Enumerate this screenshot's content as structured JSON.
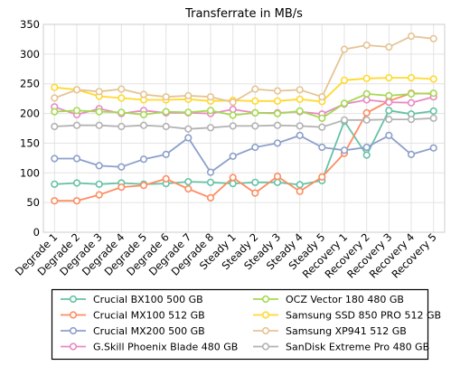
{
  "chart_data": {
    "type": "line",
    "title": "Transferrate in MB/s",
    "xlabel": "",
    "ylabel": "",
    "ylim": [
      0,
      350
    ],
    "yticks": [
      0,
      50,
      100,
      150,
      200,
      250,
      300,
      350
    ],
    "grid": true,
    "legend_position": "bottom",
    "categories": [
      "Degrade 1",
      "Degrade 2",
      "Degrade 3",
      "Degrade 4",
      "Degrade 5",
      "Degrade 6",
      "Degrade 7",
      "Degrade 8",
      "Steady 1",
      "Steady 2",
      "Steady 3",
      "Steady 4",
      "Steady 5",
      "Recovery 1",
      "Recovery 2",
      "Recovery 3",
      "Recovery 4",
      "Recovery 5"
    ],
    "series": [
      {
        "name": "Crucial BX100 500 GB",
        "color": "#66c2a5",
        "values": [
          81,
          83,
          81,
          83,
          81,
          82,
          85,
          84,
          82,
          84,
          84,
          80,
          87,
          187,
          130,
          205,
          199,
          204
        ]
      },
      {
        "name": "Crucial MX100 512 GB",
        "color": "#fc8d62",
        "values": [
          53,
          53,
          63,
          76,
          79,
          90,
          73,
          58,
          92,
          66,
          94,
          69,
          93,
          133,
          201,
          221,
          234,
          233
        ]
      },
      {
        "name": "Crucial MX200 500 GB",
        "color": "#8da0cb",
        "values": [
          124,
          124,
          112,
          110,
          123,
          131,
          159,
          101,
          128,
          143,
          150,
          163,
          143,
          138,
          143,
          163,
          131,
          142
        ]
      },
      {
        "name": "G.Skill Phoenix Blade 480 GB",
        "color": "#e78ac3",
        "values": [
          211,
          198,
          208,
          200,
          205,
          201,
          201,
          200,
          207,
          201,
          201,
          203,
          199,
          216,
          223,
          219,
          218,
          228
        ]
      },
      {
        "name": "OCZ Vector 180 480 GB",
        "color": "#a6d854",
        "values": [
          203,
          205,
          203,
          202,
          198,
          203,
          202,
          205,
          197,
          201,
          200,
          204,
          192,
          217,
          233,
          230,
          233,
          234
        ]
      },
      {
        "name": "Samsung SSD 850 PRO 512 GB",
        "color": "#ffd92f",
        "values": [
          244,
          240,
          229,
          226,
          223,
          223,
          224,
          221,
          222,
          221,
          221,
          224,
          220,
          256,
          259,
          260,
          260,
          258
        ]
      },
      {
        "name": "Samsung XP941 512 GB",
        "color": "#e5c494",
        "values": [
          226,
          240,
          237,
          241,
          232,
          228,
          230,
          228,
          219,
          241,
          238,
          240,
          228,
          308,
          315,
          312,
          330,
          326
        ]
      },
      {
        "name": "SanDisk Extreme Pro 480 GB",
        "color": "#b3b3b3",
        "values": [
          178,
          180,
          180,
          178,
          180,
          178,
          174,
          176,
          179,
          179,
          180,
          179,
          177,
          189,
          189,
          190,
          190,
          192
        ]
      }
    ]
  }
}
